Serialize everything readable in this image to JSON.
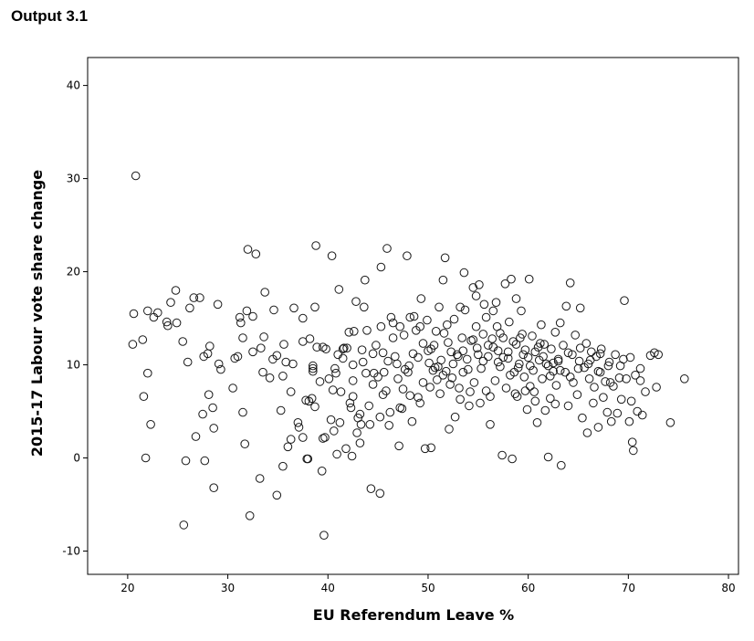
{
  "header": {
    "title": "Output 3.1"
  },
  "chart_data": {
    "type": "scatter",
    "xlabel": "EU Referendum Leave %",
    "ylabel": "2015-17 Labour vote share change",
    "xlim": [
      16,
      81
    ],
    "ylim": [
      -12.5,
      43
    ],
    "xticks": [
      20,
      30,
      40,
      50,
      60,
      70,
      80
    ],
    "yticks": [
      -10,
      0,
      10,
      20,
      30,
      40
    ],
    "grid": false,
    "marker": "hollow-circle",
    "points": [
      [
        20.8,
        30.3
      ],
      [
        20.6,
        15.5
      ],
      [
        20.5,
        12.2
      ],
      [
        21.5,
        12.7
      ],
      [
        21.6,
        6.6
      ],
      [
        21.8,
        0
      ],
      [
        22,
        9.1
      ],
      [
        22.3,
        3.6
      ],
      [
        22,
        15.8
      ],
      [
        22.6,
        15.1
      ],
      [
        23,
        15.6
      ],
      [
        23.9,
        14.6
      ],
      [
        24,
        14.2
      ],
      [
        24.3,
        16.7
      ],
      [
        24.8,
        18
      ],
      [
        24.9,
        14.5
      ],
      [
        25.5,
        12.5
      ],
      [
        25.6,
        -7.2
      ],
      [
        25.8,
        -0.3
      ],
      [
        26,
        10.3
      ],
      [
        26.2,
        16.1
      ],
      [
        26.6,
        17.2
      ],
      [
        27.2,
        17.2
      ],
      [
        26.8,
        2.3
      ],
      [
        27.5,
        4.7
      ],
      [
        27.7,
        -0.3
      ],
      [
        27.6,
        10.9
      ],
      [
        28,
        11.2
      ],
      [
        28.2,
        12
      ],
      [
        28.1,
        6.8
      ],
      [
        28.5,
        5.4
      ],
      [
        28.6,
        3.2
      ],
      [
        28.6,
        -3.2
      ],
      [
        29,
        16.5
      ],
      [
        29.1,
        10.1
      ],
      [
        29.3,
        9.5
      ],
      [
        30.7,
        10.7
      ],
      [
        31,
        10.9
      ],
      [
        31.2,
        15.1
      ],
      [
        31.3,
        14.5
      ],
      [
        31.5,
        4.9
      ],
      [
        31.7,
        1.5
      ],
      [
        31.9,
        15.8
      ],
      [
        32,
        22.4
      ],
      [
        32.2,
        -6.2
      ],
      [
        32.5,
        15.2
      ],
      [
        32.8,
        21.9
      ],
      [
        33.2,
        -2.2
      ],
      [
        33.3,
        11.8
      ],
      [
        33.6,
        13
      ],
      [
        33.7,
        17.8
      ],
      [
        34.2,
        8.6
      ],
      [
        34.6,
        15.9
      ],
      [
        34.9,
        -4
      ],
      [
        34.9,
        11
      ],
      [
        35.3,
        5.1
      ],
      [
        35.6,
        12.2
      ],
      [
        35.5,
        -0.9
      ],
      [
        35.8,
        10.3
      ],
      [
        36,
        1.2
      ],
      [
        36.3,
        7.1
      ],
      [
        36.3,
        2
      ],
      [
        36.6,
        16.1
      ],
      [
        37,
        3.8
      ],
      [
        37.1,
        3.3
      ],
      [
        37.5,
        2.2
      ],
      [
        37.5,
        15
      ],
      [
        37.8,
        6.2
      ],
      [
        37.9,
        -0.1
      ],
      [
        38,
        -0.1
      ],
      [
        38.1,
        6.1
      ],
      [
        38.2,
        12.8
      ],
      [
        38.4,
        6.4
      ],
      [
        38.5,
        9.3
      ],
      [
        38.5,
        9.6
      ],
      [
        38.7,
        16.2
      ],
      [
        38.7,
        5.5
      ],
      [
        38.8,
        22.8
      ],
      [
        38.9,
        11.9
      ],
      [
        39.2,
        8.2
      ],
      [
        39.4,
        -1.4
      ],
      [
        39.5,
        2.1
      ],
      [
        39.6,
        -8.3
      ],
      [
        39.7,
        2.2
      ],
      [
        39.8,
        11.7
      ],
      [
        40.1,
        8.5
      ],
      [
        40.3,
        4.1
      ],
      [
        40.4,
        21.7
      ],
      [
        40.6,
        2.9
      ],
      [
        40.7,
        9.6
      ],
      [
        40.8,
        9.1
      ],
      [
        40.9,
        0.4
      ],
      [
        41,
        11.1
      ],
      [
        41.1,
        18.1
      ],
      [
        41.3,
        7.1
      ],
      [
        41.5,
        11.7
      ],
      [
        41.6,
        11.8
      ],
      [
        41.8,
        1
      ],
      [
        41.9,
        11.8
      ],
      [
        42.1,
        13.5
      ],
      [
        42.3,
        5.4
      ],
      [
        42.4,
        0.2
      ],
      [
        42.5,
        8.3
      ],
      [
        42.5,
        10
      ],
      [
        42.6,
        13.6
      ],
      [
        42.8,
        16.8
      ],
      [
        42.9,
        2.7
      ],
      [
        43,
        4.3
      ],
      [
        43.2,
        1.6
      ],
      [
        43.3,
        3.6
      ],
      [
        43.4,
        11.6
      ],
      [
        43.6,
        16.2
      ],
      [
        43.7,
        19.1
      ],
      [
        43.8,
        9.1
      ],
      [
        43.9,
        13.7
      ],
      [
        44.1,
        5.6
      ],
      [
        44.3,
        -3.3
      ],
      [
        44.5,
        11.2
      ],
      [
        44.6,
        9.1
      ],
      [
        44.8,
        12.1
      ],
      [
        45.2,
        -3.8
      ],
      [
        45.3,
        20.5
      ],
      [
        45.3,
        14.1
      ],
      [
        45.5,
        11.3
      ],
      [
        45.6,
        9.2
      ],
      [
        45.8,
        7.2
      ],
      [
        45.9,
        22.5
      ],
      [
        46.1,
        3.5
      ],
      [
        46.3,
        15.1
      ],
      [
        46.5,
        14.5
      ],
      [
        46.7,
        10.9
      ],
      [
        46.9,
        10.1
      ],
      [
        47.1,
        1.3
      ],
      [
        47.2,
        14.1
      ],
      [
        47.4,
        5.3
      ],
      [
        47.6,
        13.2
      ],
      [
        47.7,
        9.5
      ],
      [
        47.9,
        21.7
      ],
      [
        48.1,
        9.9
      ],
      [
        48.2,
        15.1
      ],
      [
        48.4,
        3.9
      ],
      [
        48.6,
        15.2
      ],
      [
        48.8,
        13.7
      ],
      [
        49,
        6.5
      ],
      [
        49.2,
        14.1
      ],
      [
        49.3,
        17.1
      ],
      [
        49.5,
        12.3
      ],
      [
        49.7,
        1
      ],
      [
        49.9,
        14.8
      ],
      [
        50.1,
        10.2
      ],
      [
        50.3,
        1.1
      ],
      [
        50.3,
        11.7
      ],
      [
        50.6,
        12.1
      ],
      [
        50.7,
        9.7
      ],
      [
        50.8,
        13.6
      ],
      [
        50.9,
        8.4
      ],
      [
        51.1,
        16.2
      ],
      [
        51.3,
        10.5
      ],
      [
        51.5,
        19.1
      ],
      [
        51.6,
        13.4
      ],
      [
        51.7,
        21.5
      ],
      [
        51.8,
        9.3
      ],
      [
        51.9,
        14.3
      ],
      [
        52.1,
        3.1
      ],
      [
        52.3,
        11.4
      ],
      [
        52.4,
        8.6
      ],
      [
        52.6,
        14.9
      ],
      [
        52.7,
        4.4
      ],
      [
        52.9,
        11.1
      ],
      [
        53.1,
        7.5
      ],
      [
        53.2,
        16.2
      ],
      [
        53.4,
        12.9
      ],
      [
        53.5,
        9.2
      ],
      [
        53.6,
        19.9
      ],
      [
        53.7,
        15.9
      ],
      [
        53.9,
        10.6
      ],
      [
        54.1,
        5.6
      ],
      [
        54.3,
        12.6
      ],
      [
        54.5,
        18.3
      ],
      [
        54.6,
        8.1
      ],
      [
        54.8,
        14.1
      ],
      [
        54.9,
        11.8
      ],
      [
        55.1,
        18.6
      ],
      [
        55.3,
        9.6
      ],
      [
        55.5,
        13.3
      ],
      [
        55.6,
        16.5
      ],
      [
        55.8,
        7.2
      ],
      [
        56,
        10.9
      ],
      [
        56.2,
        3.6
      ],
      [
        56.4,
        12.8
      ],
      [
        56.5,
        15.8
      ],
      [
        56.7,
        8.3
      ],
      [
        56.9,
        14.1
      ],
      [
        57,
        11.5
      ],
      [
        57.2,
        9.8
      ],
      [
        57.4,
        0.3
      ],
      [
        57.5,
        12.9
      ],
      [
        57.7,
        18.7
      ],
      [
        57.8,
        7.5
      ],
      [
        58,
        10.7
      ],
      [
        58.1,
        14.6
      ],
      [
        58.3,
        19.2
      ],
      [
        58.4,
        -0.1
      ],
      [
        58.6,
        9.2
      ],
      [
        58.8,
        12.2
      ],
      [
        58.9,
        6.6
      ],
      [
        59.1,
        10.1
      ],
      [
        59.3,
        15.8
      ],
      [
        59.4,
        13.3
      ],
      [
        59.6,
        8.7
      ],
      [
        59.7,
        11.6
      ],
      [
        59.9,
        5.2
      ],
      [
        60.1,
        19.2
      ],
      [
        60.2,
        9.9
      ],
      [
        60.4,
        13.1
      ],
      [
        60.6,
        7.1
      ],
      [
        60.7,
        11.4
      ],
      [
        60.9,
        3.8
      ],
      [
        61.1,
        10.5
      ],
      [
        61.3,
        14.3
      ],
      [
        61.4,
        8.5
      ],
      [
        61.6,
        12.2
      ],
      [
        61.8,
        10.1
      ],
      [
        62,
        0.1
      ],
      [
        62.2,
        6.4
      ],
      [
        62.3,
        11.7
      ],
      [
        62.5,
        9.3
      ],
      [
        62.7,
        13.5
      ],
      [
        62.8,
        7.8
      ],
      [
        63,
        10.6
      ],
      [
        63.2,
        14.5
      ],
      [
        63.3,
        -0.8
      ],
      [
        63.5,
        12.1
      ],
      [
        63.7,
        9.2
      ],
      [
        63.8,
        16.3
      ],
      [
        64,
        5.6
      ],
      [
        64.2,
        18.8
      ],
      [
        64.4,
        11.1
      ],
      [
        64.5,
        8.1
      ],
      [
        64.7,
        13.2
      ],
      [
        64.9,
        6.8
      ],
      [
        65.1,
        10.4
      ],
      [
        65.2,
        16.1
      ],
      [
        65.4,
        4.3
      ],
      [
        65.6,
        9.7
      ],
      [
        65.8,
        12.3
      ],
      [
        65.9,
        2.7
      ],
      [
        66.1,
        8.5
      ],
      [
        66.3,
        11.4
      ],
      [
        66.5,
        5.9
      ],
      [
        66.6,
        7.6
      ],
      [
        66.8,
        10.9
      ],
      [
        67,
        3.3
      ],
      [
        67.2,
        9.2
      ],
      [
        67.3,
        11.7
      ],
      [
        67.5,
        6.5
      ],
      [
        67.7,
        8.2
      ],
      [
        67.9,
        4.9
      ],
      [
        68.1,
        10.3
      ],
      [
        68.3,
        3.9
      ],
      [
        68.5,
        7.7
      ],
      [
        68.7,
        11.1
      ],
      [
        68.9,
        4.8
      ],
      [
        69.1,
        8.6
      ],
      [
        69.3,
        6.3
      ],
      [
        69.5,
        10.6
      ],
      [
        69.6,
        16.9
      ],
      [
        69.8,
        8.5
      ],
      [
        70.1,
        3.9
      ],
      [
        70.3,
        6.1
      ],
      [
        70.4,
        1.7
      ],
      [
        70.5,
        0.8
      ],
      [
        70.7,
        8.9
      ],
      [
        70.9,
        5
      ],
      [
        71.2,
        8.3
      ],
      [
        71.4,
        4.6
      ],
      [
        71.7,
        7.1
      ],
      [
        72.2,
        11
      ],
      [
        72.6,
        11.3
      ],
      [
        73,
        11.1
      ],
      [
        72.8,
        7.6
      ],
      [
        74.2,
        3.8
      ],
      [
        75.6,
        8.5
      ],
      [
        45,
        8.7
      ],
      [
        46,
        10.4
      ],
      [
        47,
        8.5
      ],
      [
        48,
        9.2
      ],
      [
        49,
        10.8
      ],
      [
        50,
        11.5
      ],
      [
        51,
        9.8
      ],
      [
        52,
        12.4
      ],
      [
        53,
        10.9
      ],
      [
        54,
        9.5
      ],
      [
        55,
        11.1
      ],
      [
        56,
        12.1
      ],
      [
        57,
        10.3
      ],
      [
        58,
        11.4
      ],
      [
        59,
        9.7
      ],
      [
        60,
        10.8
      ],
      [
        61,
        11.9
      ],
      [
        62,
        9.9
      ],
      [
        63,
        10.4
      ],
      [
        64,
        11.3
      ],
      [
        65,
        9.6
      ],
      [
        66,
        10.1
      ],
      [
        67,
        9.3
      ],
      [
        68,
        9.9
      ],
      [
        57.5,
        10.8
      ],
      [
        58.5,
        12.5
      ],
      [
        59.5,
        11.1
      ],
      [
        60.5,
        9.4
      ],
      [
        61.5,
        10.9
      ],
      [
        62.5,
        10.2
      ],
      [
        56.5,
        11.9
      ],
      [
        55.5,
        10.4
      ],
      [
        54.5,
        12.7
      ],
      [
        53.5,
        11.5
      ],
      [
        52.5,
        10.1
      ],
      [
        51.5,
        8.9
      ],
      [
        50.5,
        9.4
      ],
      [
        49.5,
        8.1
      ],
      [
        48.5,
        11.2
      ],
      [
        47.5,
        7.4
      ],
      [
        46.5,
        12.9
      ],
      [
        45.5,
        6.8
      ],
      [
        44.5,
        7.9
      ],
      [
        43.5,
        10.3
      ],
      [
        42.5,
        6.6
      ],
      [
        41.5,
        10.7
      ],
      [
        40.5,
        7.3
      ],
      [
        39.5,
        11.9
      ],
      [
        38.5,
        9.9
      ],
      [
        37.5,
        12.5
      ],
      [
        36.5,
        10.1
      ],
      [
        35.5,
        8.8
      ],
      [
        34.5,
        10.6
      ],
      [
        33.5,
        9.2
      ],
      [
        32.5,
        11.4
      ],
      [
        31.5,
        12.9
      ],
      [
        30.5,
        7.5
      ],
      [
        58.2,
        8.9
      ],
      [
        59.2,
        12.9
      ],
      [
        60.2,
        7.7
      ],
      [
        61.2,
        12.3
      ],
      [
        62.2,
        8.8
      ],
      [
        63.2,
        9.4
      ],
      [
        64.2,
        8.7
      ],
      [
        65.2,
        11.8
      ],
      [
        66.2,
        10.5
      ],
      [
        67.2,
        11.2
      ],
      [
        68.2,
        8.1
      ],
      [
        69.2,
        9.9
      ],
      [
        70.2,
        10.8
      ],
      [
        71.2,
        9.6
      ],
      [
        56.2,
        6.6
      ],
      [
        57.2,
        13.4
      ],
      [
        58.7,
        6.9
      ],
      [
        59.7,
        7.2
      ],
      [
        60.7,
        6.1
      ],
      [
        61.7,
        5.1
      ],
      [
        62.7,
        5.8
      ],
      [
        53.2,
        6.3
      ],
      [
        54.2,
        7.1
      ],
      [
        55.2,
        5.9
      ],
      [
        52.2,
        7.9
      ],
      [
        51.2,
        6.9
      ],
      [
        50.2,
        7.6
      ],
      [
        49.2,
        5.9
      ],
      [
        48.2,
        6.7
      ],
      [
        47.2,
        5.4
      ],
      [
        46.2,
        4.9
      ],
      [
        45.2,
        4.4
      ],
      [
        44.2,
        3.6
      ],
      [
        43.2,
        4.7
      ],
      [
        42.2,
        5.9
      ],
      [
        41.2,
        3.8
      ],
      [
        54.8,
        17.4
      ],
      [
        56.8,
        16.7
      ],
      [
        58.8,
        17.1
      ],
      [
        55.8,
        15.1
      ]
    ]
  }
}
